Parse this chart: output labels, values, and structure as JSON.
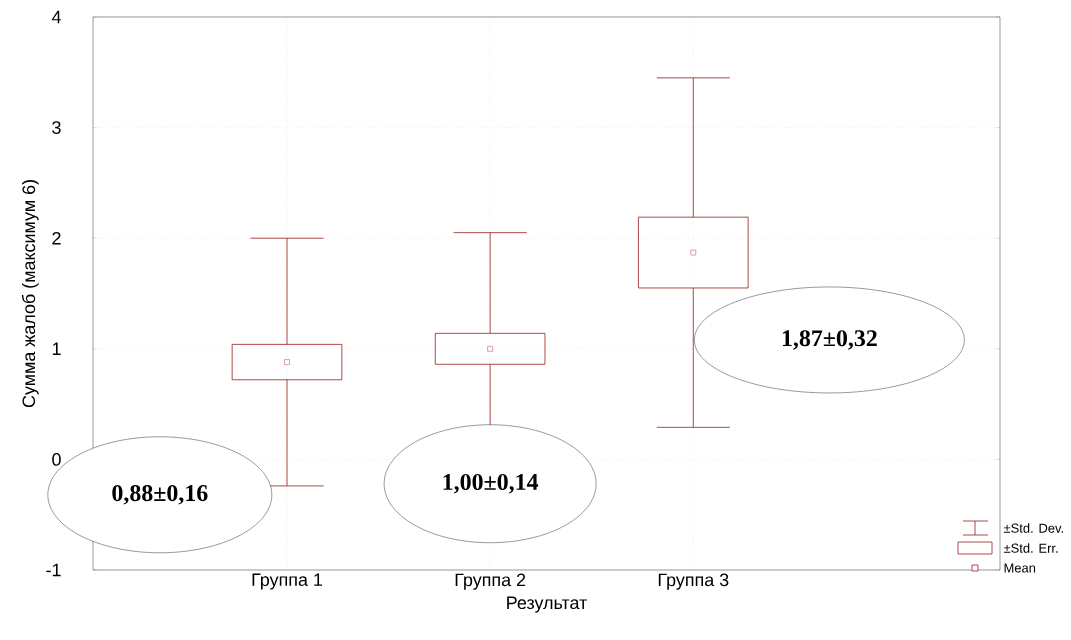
{
  "chart_data": {
    "type": "box",
    "xlabel": "Результат",
    "ylabel": "Сумма жалоб (максимум 6)",
    "categories": [
      "Группа 1",
      "Группа 2",
      "Группа 3"
    ],
    "color": "#9b1c1c",
    "boxes": [
      {
        "low": -0.24,
        "q1": 0.72,
        "mean": 0.88,
        "q3": 1.04,
        "high": 2.0
      },
      {
        "low": -0.05,
        "q1": 0.86,
        "mean": 1.0,
        "q3": 1.14,
        "high": 2.05
      },
      {
        "low": 0.29,
        "q1": 1.55,
        "mean": 1.87,
        "q3": 2.19,
        "high": 3.45
      }
    ],
    "ylim": [
      -1,
      4
    ],
    "yticks": [
      -1,
      0,
      1,
      2,
      3,
      4
    ],
    "grid": true,
    "marker": "square",
    "annotations": [
      "0,88±0,16",
      "1,00±0,14",
      "1,87±0,32",
      "±Std. Dev.",
      "±Std. Err.",
      "Mean"
    ]
  }
}
